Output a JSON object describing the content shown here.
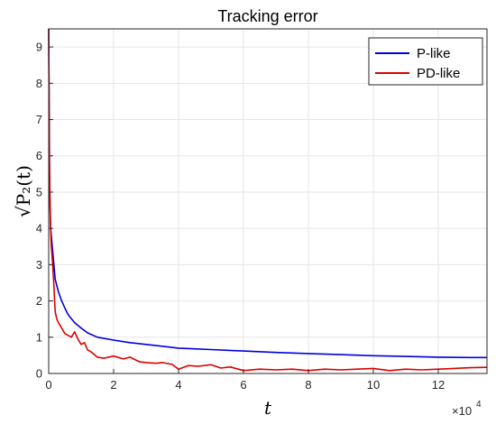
{
  "chart_data": {
    "type": "line",
    "title": "Tracking error",
    "xlabel": "t",
    "ylabel": "√P₂(t)",
    "x_multiplier_label": "×10",
    "x_multiplier_exponent": "4",
    "xlim": [
      0,
      13.5
    ],
    "ylim": [
      0,
      9.5
    ],
    "x_ticks": [
      0,
      2,
      4,
      6,
      8,
      10,
      12
    ],
    "y_ticks": [
      0,
      1,
      2,
      3,
      4,
      5,
      6,
      7,
      8,
      9
    ],
    "grid": true,
    "legend_position": "top-right",
    "series": [
      {
        "name": "P-like",
        "color": "#0000dd",
        "x": [
          0,
          0.03,
          0.06,
          0.1,
          0.15,
          0.2,
          0.3,
          0.4,
          0.5,
          0.6,
          0.8,
          1.0,
          1.2,
          1.5,
          2.0,
          2.5,
          3.0,
          3.5,
          4.0,
          4.5,
          5.0,
          5.5,
          6.0,
          7.0,
          8.0,
          9.0,
          10.0,
          11.0,
          12.0,
          13.0,
          13.5
        ],
        "y": [
          9.5,
          5.0,
          4.0,
          3.6,
          3.1,
          2.6,
          2.25,
          2.0,
          1.8,
          1.62,
          1.4,
          1.25,
          1.12,
          1.0,
          0.92,
          0.85,
          0.8,
          0.75,
          0.7,
          0.68,
          0.66,
          0.64,
          0.62,
          0.58,
          0.55,
          0.52,
          0.49,
          0.47,
          0.45,
          0.44,
          0.44
        ]
      },
      {
        "name": "PD-like",
        "color": "#dd0000",
        "x": [
          0,
          0.02,
          0.05,
          0.08,
          0.1,
          0.15,
          0.2,
          0.25,
          0.3,
          0.4,
          0.5,
          0.6,
          0.7,
          0.8,
          0.9,
          1.0,
          1.1,
          1.2,
          1.3,
          1.5,
          1.7,
          2.0,
          2.3,
          2.5,
          2.8,
          3.0,
          3.3,
          3.5,
          3.8,
          4.0,
          4.3,
          4.6,
          5.0,
          5.3,
          5.6,
          6.0,
          6.5,
          7.0,
          7.5,
          8.0,
          8.5,
          9.0,
          9.5,
          10.0,
          10.5,
          11.0,
          11.5,
          12.0,
          12.5,
          13.0,
          13.5
        ],
        "y": [
          9.5,
          6.0,
          4.2,
          3.5,
          3.3,
          2.6,
          1.7,
          1.5,
          1.4,
          1.25,
          1.1,
          1.05,
          1.0,
          1.15,
          0.95,
          0.8,
          0.85,
          0.65,
          0.6,
          0.45,
          0.42,
          0.48,
          0.4,
          0.45,
          0.32,
          0.3,
          0.28,
          0.3,
          0.25,
          0.12,
          0.22,
          0.2,
          0.24,
          0.15,
          0.18,
          0.08,
          0.12,
          0.1,
          0.12,
          0.08,
          0.12,
          0.1,
          0.12,
          0.14,
          0.08,
          0.12,
          0.1,
          0.12,
          0.14,
          0.16,
          0.17
        ]
      }
    ]
  }
}
